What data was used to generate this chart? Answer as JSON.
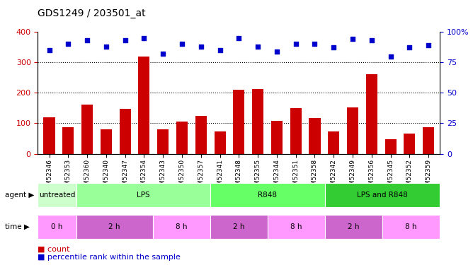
{
  "title": "GDS1249 / 203501_at",
  "samples": [
    "GSM52346",
    "GSM52353",
    "GSM52360",
    "GSM52340",
    "GSM52347",
    "GSM52354",
    "GSM52343",
    "GSM52350",
    "GSM52357",
    "GSM52341",
    "GSM52348",
    "GSM52355",
    "GSM52344",
    "GSM52351",
    "GSM52358",
    "GSM52342",
    "GSM52349",
    "GSM52356",
    "GSM52345",
    "GSM52352",
    "GSM52359"
  ],
  "counts": [
    120,
    87,
    162,
    80,
    147,
    320,
    80,
    106,
    124,
    72,
    210,
    212,
    108,
    150,
    117,
    72,
    152,
    260,
    47,
    65,
    88
  ],
  "percentile": [
    85,
    90,
    93,
    88,
    93,
    95,
    82,
    90,
    88,
    85,
    95,
    88,
    84,
    90,
    90,
    87,
    94,
    93,
    80,
    87,
    89
  ],
  "bar_color": "#cc0000",
  "dot_color": "#0000cc",
  "ylim_left": [
    0,
    400
  ],
  "ylim_right": [
    0,
    100
  ],
  "yticks_left": [
    0,
    100,
    200,
    300,
    400
  ],
  "yticks_right": [
    0,
    25,
    50,
    75,
    100
  ],
  "yticklabels_right": [
    "0",
    "25",
    "50",
    "75",
    "100%"
  ],
  "gridlines": [
    100,
    200,
    300
  ],
  "agent_groups": [
    {
      "label": "untreated",
      "start": 0,
      "end": 2,
      "color": "#ccffcc"
    },
    {
      "label": "LPS",
      "start": 2,
      "end": 9,
      "color": "#99ff99"
    },
    {
      "label": "R848",
      "start": 9,
      "end": 15,
      "color": "#66ff66"
    },
    {
      "label": "LPS and R848",
      "start": 15,
      "end": 21,
      "color": "#33cc33"
    }
  ],
  "time_groups": [
    {
      "label": "0 h",
      "start": 0,
      "end": 2,
      "color": "#ff99ff"
    },
    {
      "label": "2 h",
      "start": 2,
      "end": 6,
      "color": "#cc66cc"
    },
    {
      "label": "8 h",
      "start": 6,
      "end": 9,
      "color": "#ff99ff"
    },
    {
      "label": "2 h",
      "start": 9,
      "end": 12,
      "color": "#cc66cc"
    },
    {
      "label": "8 h",
      "start": 12,
      "end": 15,
      "color": "#ff99ff"
    },
    {
      "label": "2 h",
      "start": 15,
      "end": 18,
      "color": "#cc66cc"
    },
    {
      "label": "8 h",
      "start": 18,
      "end": 21,
      "color": "#ff99ff"
    }
  ],
  "legend_items": [
    {
      "label": "count",
      "color": "#cc0000",
      "marker": "s"
    },
    {
      "label": "percentile rank within the sample",
      "color": "#0000cc",
      "marker": "s"
    }
  ],
  "bg_color": "#ffffff"
}
